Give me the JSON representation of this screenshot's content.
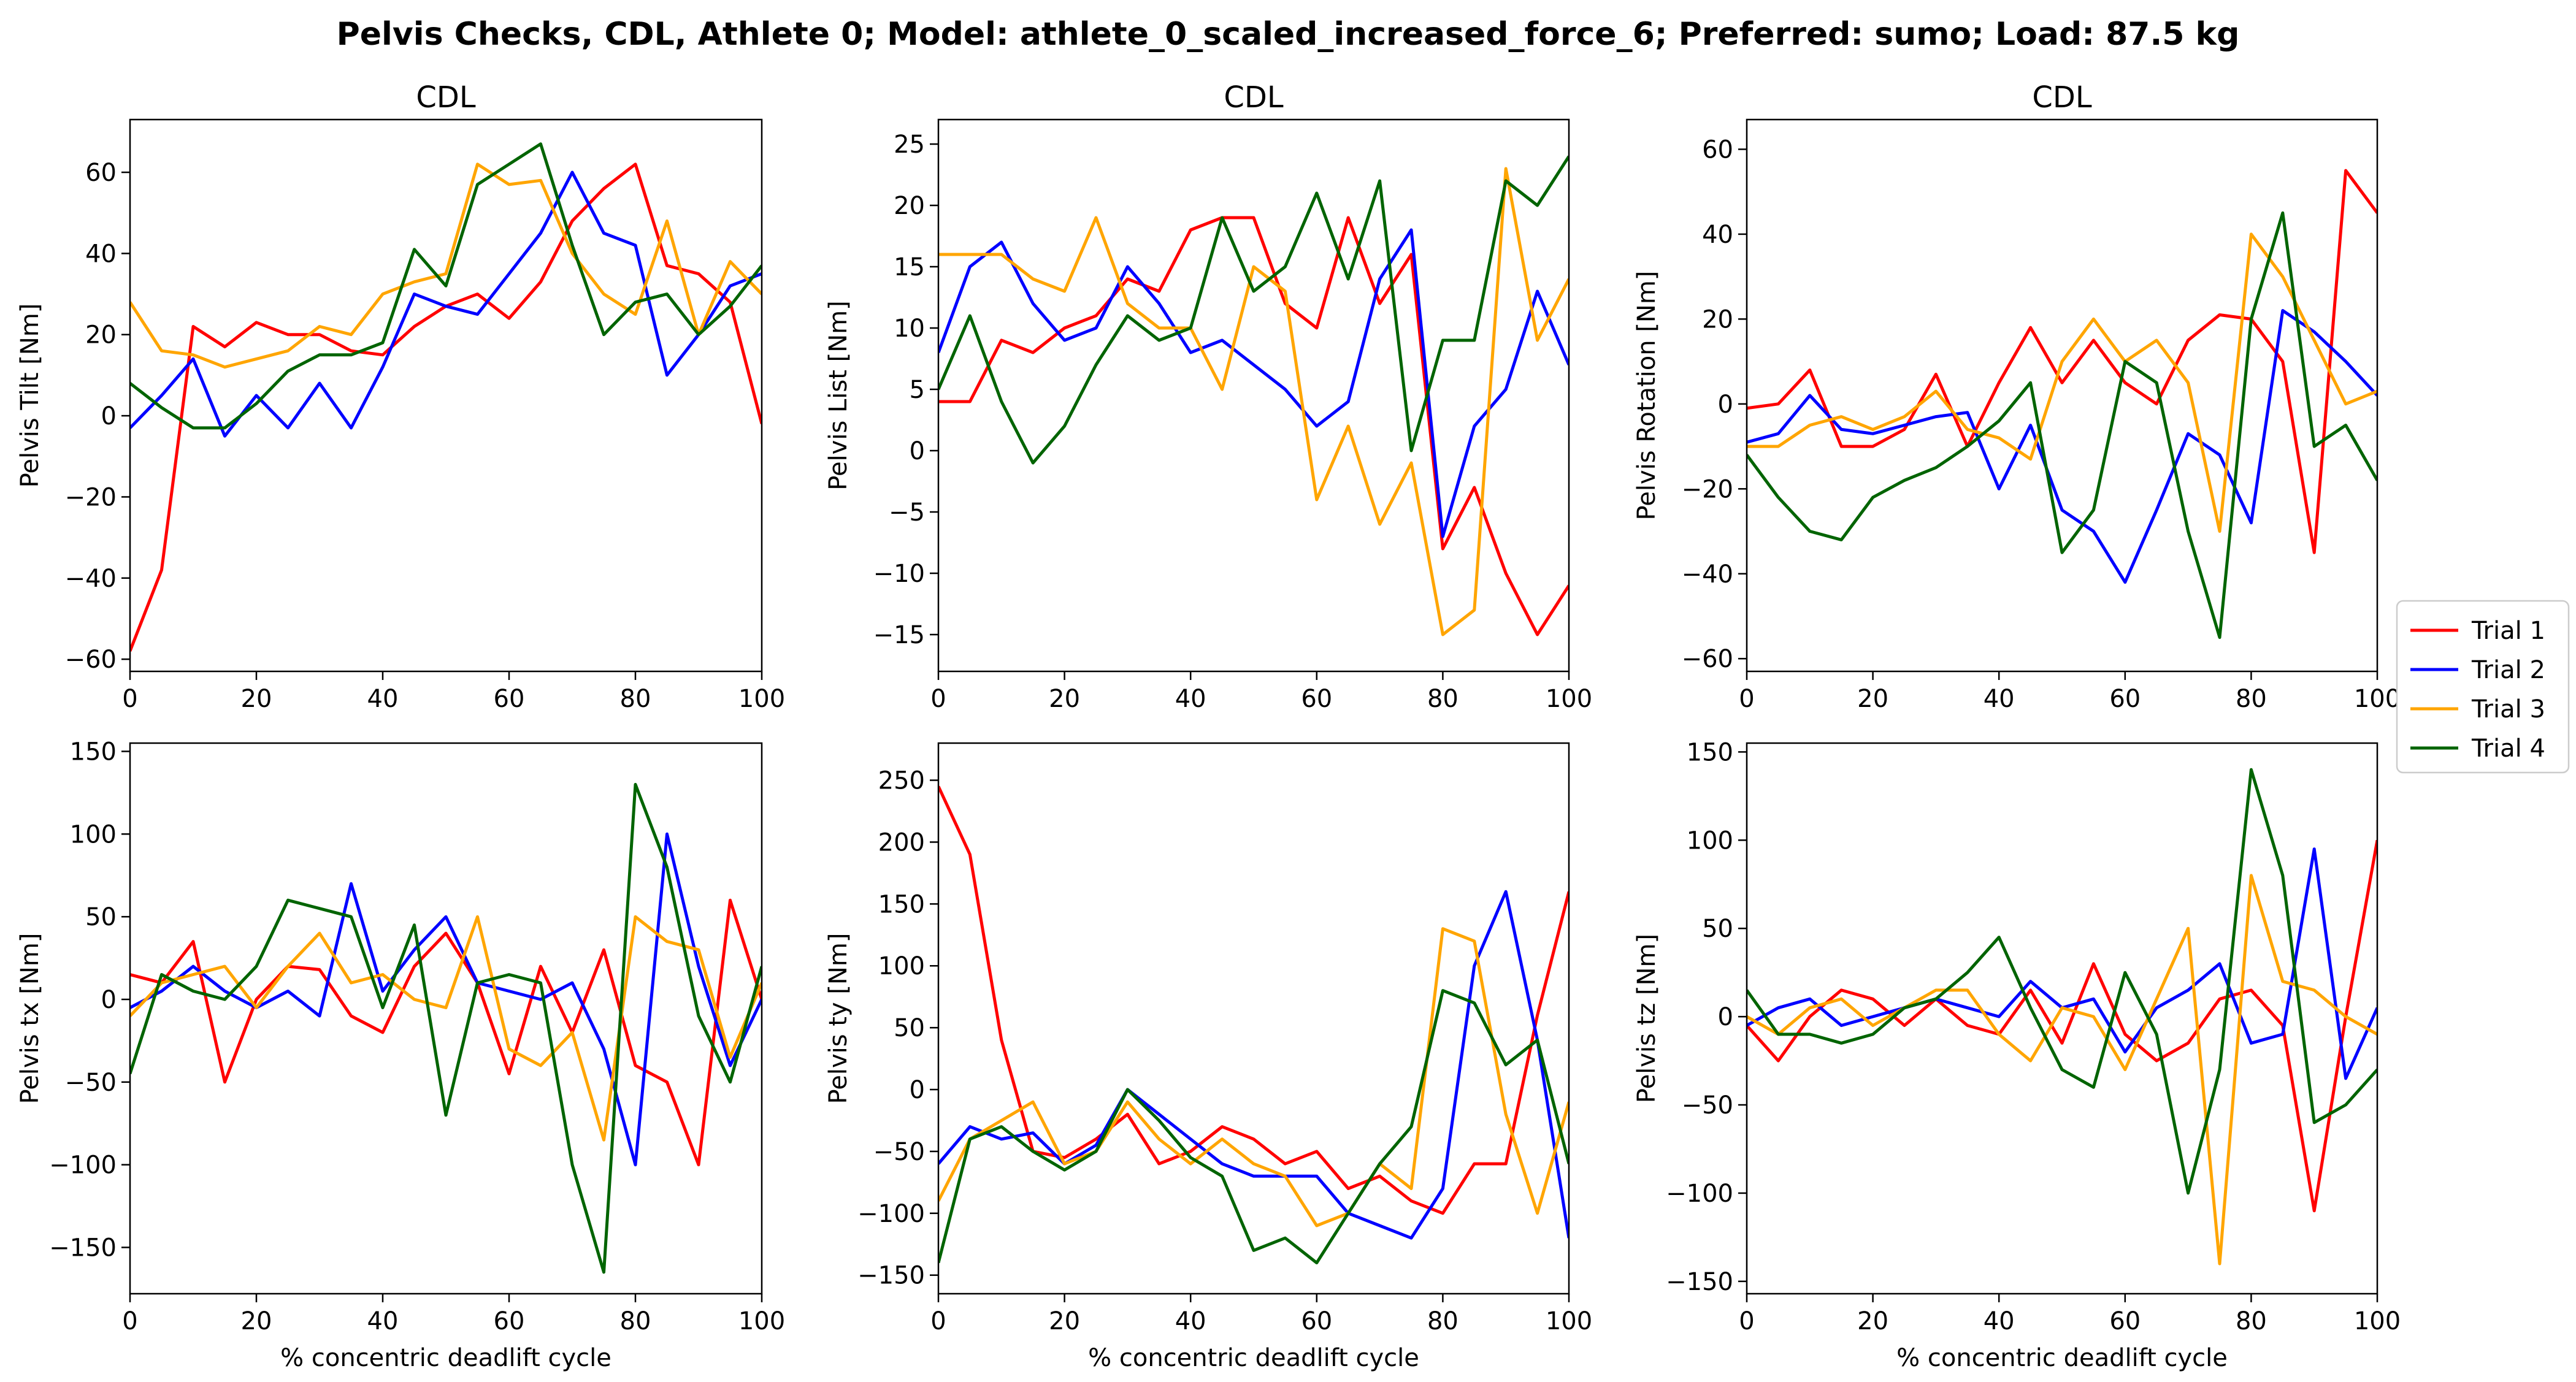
{
  "suptitle": "Pelvis Checks, CDL, Athlete 0; Model: athlete_0_scaled_increased_force_6; Preferred: sumo; Load: 87.5 kg",
  "colors": {
    "trial1": "#ff0000",
    "trial2": "#0000ff",
    "trial3": "#ffa500",
    "trial4": "#006400"
  },
  "chart_data": [
    {
      "type": "line",
      "title": "CDL",
      "ylabel": "Pelvis Tilt [Nm]",
      "xlabel": "",
      "xlim": [
        0,
        100
      ],
      "ylim": [
        -63,
        73
      ],
      "xticks": [
        0,
        20,
        40,
        60,
        80,
        100
      ],
      "yticks": [
        -60,
        -40,
        -20,
        0,
        20,
        40,
        60
      ],
      "x": [
        0,
        5,
        10,
        15,
        20,
        25,
        30,
        35,
        40,
        45,
        50,
        55,
        60,
        65,
        70,
        75,
        80,
        85,
        90,
        95,
        100
      ],
      "series": [
        {
          "name": "Trial 1",
          "values": [
            -58,
            -38,
            22,
            17,
            23,
            20,
            20,
            16,
            15,
            22,
            27,
            30,
            24,
            33,
            48,
            56,
            62,
            37,
            35,
            28,
            -2
          ]
        },
        {
          "name": "Trial 2",
          "values": [
            -3,
            5,
            14,
            -5,
            5,
            -3,
            8,
            -3,
            12,
            30,
            27,
            25,
            35,
            45,
            60,
            45,
            42,
            10,
            20,
            32,
            35
          ]
        },
        {
          "name": "Trial 3",
          "values": [
            28,
            16,
            15,
            12,
            14,
            16,
            22,
            20,
            30,
            33,
            35,
            62,
            57,
            58,
            40,
            30,
            25,
            48,
            20,
            38,
            30
          ]
        },
        {
          "name": "Trial 4",
          "values": [
            8,
            2,
            -3,
            -3,
            3,
            11,
            15,
            15,
            18,
            41,
            32,
            57,
            62,
            67,
            42,
            20,
            28,
            30,
            20,
            27,
            37
          ]
        }
      ]
    },
    {
      "type": "line",
      "title": "CDL",
      "ylabel": "Pelvis List [Nm]",
      "xlabel": "",
      "xlim": [
        0,
        100
      ],
      "ylim": [
        -18,
        27
      ],
      "xticks": [
        0,
        20,
        40,
        60,
        80,
        100
      ],
      "yticks": [
        -15,
        -10,
        -5,
        0,
        5,
        10,
        15,
        20,
        25
      ],
      "x": [
        0,
        5,
        10,
        15,
        20,
        25,
        30,
        35,
        40,
        45,
        50,
        55,
        60,
        65,
        70,
        75,
        80,
        85,
        90,
        95,
        100
      ],
      "series": [
        {
          "name": "Trial 1",
          "values": [
            4,
            4,
            9,
            8,
            10,
            11,
            14,
            13,
            18,
            19,
            19,
            12,
            10,
            19,
            12,
            16,
            -8,
            -3,
            -10,
            -15,
            -11
          ]
        },
        {
          "name": "Trial 2",
          "values": [
            8,
            15,
            17,
            12,
            9,
            10,
            15,
            12,
            8,
            9,
            7,
            5,
            2,
            4,
            14,
            18,
            -7,
            2,
            5,
            13,
            7
          ]
        },
        {
          "name": "Trial 3",
          "values": [
            16,
            16,
            16,
            14,
            13,
            19,
            12,
            10,
            10,
            5,
            15,
            13,
            -4,
            2,
            -6,
            -1,
            -15,
            -13,
            23,
            9,
            14
          ]
        },
        {
          "name": "Trial 4",
          "values": [
            5,
            11,
            4,
            -1,
            2,
            7,
            11,
            9,
            10,
            19,
            13,
            15,
            21,
            14,
            22,
            0,
            9,
            9,
            22,
            20,
            24
          ]
        }
      ]
    },
    {
      "type": "line",
      "title": "CDL",
      "ylabel": "Pelvis Rotation [Nm]",
      "xlabel": "",
      "xlim": [
        0,
        100
      ],
      "ylim": [
        -63,
        67
      ],
      "xticks": [
        0,
        20,
        40,
        60,
        80,
        100
      ],
      "yticks": [
        -60,
        -40,
        -20,
        0,
        20,
        40,
        60
      ],
      "x": [
        0,
        5,
        10,
        15,
        20,
        25,
        30,
        35,
        40,
        45,
        50,
        55,
        60,
        65,
        70,
        75,
        80,
        85,
        90,
        95,
        100
      ],
      "series": [
        {
          "name": "Trial 1",
          "values": [
            -1,
            0,
            8,
            -10,
            -10,
            -6,
            7,
            -10,
            5,
            18,
            5,
            15,
            5,
            0,
            15,
            21,
            20,
            10,
            -35,
            55,
            45
          ]
        },
        {
          "name": "Trial 2",
          "values": [
            -9,
            -7,
            2,
            -6,
            -7,
            -5,
            -3,
            -2,
            -20,
            -5,
            -25,
            -30,
            -42,
            -25,
            -7,
            -12,
            -28,
            22,
            17,
            10,
            2
          ]
        },
        {
          "name": "Trial 3",
          "values": [
            -10,
            -10,
            -5,
            -3,
            -6,
            -3,
            3,
            -6,
            -8,
            -13,
            10,
            20,
            10,
            15,
            5,
            -30,
            40,
            30,
            15,
            0,
            3
          ]
        },
        {
          "name": "Trial 4",
          "values": [
            -12,
            -22,
            -30,
            -32,
            -22,
            -18,
            -15,
            -10,
            -4,
            5,
            -35,
            -25,
            10,
            5,
            -30,
            -55,
            20,
            45,
            -10,
            -5,
            -18
          ]
        }
      ]
    },
    {
      "type": "line",
      "title": "",
      "ylabel": "Pelvis tx [Nm]",
      "xlabel": "% concentric deadlift cycle",
      "xlim": [
        0,
        100
      ],
      "ylim": [
        -178,
        155
      ],
      "xticks": [
        0,
        20,
        40,
        60,
        80,
        100
      ],
      "yticks": [
        -150,
        -100,
        -50,
        0,
        50,
        100,
        150
      ],
      "x": [
        0,
        5,
        10,
        15,
        20,
        25,
        30,
        35,
        40,
        45,
        50,
        55,
        60,
        65,
        70,
        75,
        80,
        85,
        90,
        95,
        100
      ],
      "series": [
        {
          "name": "Trial 1",
          "values": [
            15,
            10,
            35,
            -50,
            0,
            20,
            18,
            -10,
            -20,
            20,
            40,
            10,
            -45,
            20,
            -20,
            30,
            -40,
            -50,
            -100,
            60,
            0
          ]
        },
        {
          "name": "Trial 2",
          "values": [
            -5,
            5,
            20,
            5,
            -5,
            5,
            -10,
            70,
            5,
            30,
            50,
            10,
            5,
            0,
            10,
            -30,
            -100,
            100,
            20,
            -40,
            0
          ]
        },
        {
          "name": "Trial 3",
          "values": [
            -10,
            10,
            15,
            20,
            -5,
            20,
            40,
            10,
            15,
            0,
            -5,
            50,
            -30,
            -40,
            -20,
            -85,
            50,
            35,
            30,
            -35,
            10
          ]
        },
        {
          "name": "Trial 4",
          "values": [
            -45,
            15,
            5,
            0,
            20,
            60,
            55,
            50,
            -5,
            45,
            -70,
            10,
            15,
            10,
            -100,
            -165,
            130,
            80,
            -10,
            -50,
            20
          ]
        }
      ]
    },
    {
      "type": "line",
      "title": "",
      "ylabel": "Pelvis ty [Nm]",
      "xlabel": "% concentric deadlift cycle",
      "xlim": [
        0,
        100
      ],
      "ylim": [
        -165,
        280
      ],
      "xticks": [
        0,
        20,
        40,
        60,
        80,
        100
      ],
      "yticks": [
        -150,
        -100,
        -50,
        0,
        50,
        100,
        150,
        200,
        250
      ],
      "x": [
        0,
        5,
        10,
        15,
        20,
        25,
        30,
        35,
        40,
        45,
        50,
        55,
        60,
        65,
        70,
        75,
        80,
        85,
        90,
        95,
        100
      ],
      "series": [
        {
          "name": "Trial 1",
          "values": [
            245,
            190,
            40,
            -50,
            -55,
            -40,
            -20,
            -60,
            -50,
            -30,
            -40,
            -60,
            -50,
            -80,
            -70,
            -90,
            -100,
            -60,
            -60,
            60,
            160
          ]
        },
        {
          "name": "Trial 2",
          "values": [
            -60,
            -30,
            -40,
            -35,
            -60,
            -45,
            0,
            -20,
            -40,
            -60,
            -70,
            -70,
            -70,
            -100,
            -110,
            -120,
            -80,
            100,
            160,
            40,
            -120
          ]
        },
        {
          "name": "Trial 3",
          "values": [
            -90,
            -40,
            -25,
            -10,
            -60,
            -50,
            -10,
            -40,
            -60,
            -40,
            -60,
            -70,
            -110,
            -100,
            -60,
            -80,
            130,
            120,
            -20,
            -100,
            -10
          ]
        },
        {
          "name": "Trial 4",
          "values": [
            -140,
            -40,
            -30,
            -50,
            -65,
            -50,
            0,
            -25,
            -55,
            -70,
            -130,
            -120,
            -140,
            -100,
            -60,
            -30,
            80,
            70,
            20,
            40,
            -60
          ]
        }
      ]
    },
    {
      "type": "line",
      "title": "",
      "ylabel": "Pelvis tz [Nm]",
      "xlabel": "% concentric deadlift cycle",
      "xlim": [
        0,
        100
      ],
      "ylim": [
        -157,
        155
      ],
      "xticks": [
        0,
        20,
        40,
        60,
        80,
        100
      ],
      "yticks": [
        -150,
        -100,
        -50,
        0,
        50,
        100,
        150
      ],
      "x": [
        0,
        5,
        10,
        15,
        20,
        25,
        30,
        35,
        40,
        45,
        50,
        55,
        60,
        65,
        70,
        75,
        80,
        85,
        90,
        95,
        100
      ],
      "series": [
        {
          "name": "Trial 1",
          "values": [
            -5,
            -25,
            0,
            15,
            10,
            -5,
            10,
            -5,
            -10,
            15,
            -15,
            30,
            -10,
            -25,
            -15,
            10,
            15,
            -5,
            -110,
            0,
            100
          ]
        },
        {
          "name": "Trial 2",
          "values": [
            -5,
            5,
            10,
            -5,
            0,
            5,
            10,
            5,
            0,
            20,
            5,
            10,
            -20,
            5,
            15,
            30,
            -15,
            -10,
            95,
            -35,
            5
          ]
        },
        {
          "name": "Trial 3",
          "values": [
            0,
            -10,
            5,
            10,
            -5,
            5,
            15,
            15,
            -10,
            -25,
            5,
            0,
            -30,
            10,
            50,
            -140,
            80,
            20,
            15,
            0,
            -10
          ]
        },
        {
          "name": "Trial 4",
          "values": [
            15,
            -10,
            -10,
            -15,
            -10,
            5,
            10,
            25,
            45,
            5,
            -30,
            -40,
            25,
            -10,
            -100,
            -30,
            140,
            80,
            -60,
            -50,
            -30
          ]
        }
      ]
    }
  ],
  "legend": {
    "position": "right",
    "entries": [
      "Trial 1",
      "Trial 2",
      "Trial 3",
      "Trial 4"
    ]
  }
}
